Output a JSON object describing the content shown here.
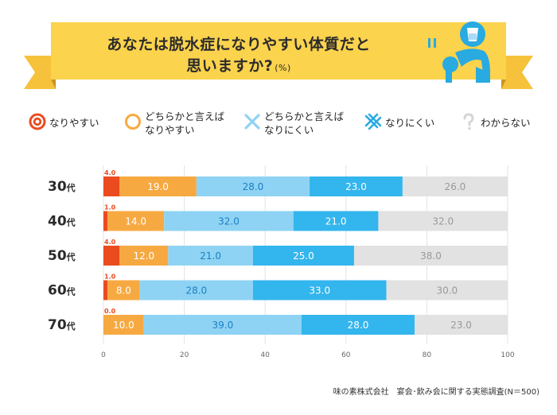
{
  "title_line1": "あなたは脱水症になりやすい体質だと",
  "title_line2": "思いますか?",
  "title_unit": "(%)",
  "legend": [
    {
      "label1": "なりやすい",
      "label2": "",
      "color": "#ea4b1f",
      "icon": "double-circle-icon"
    },
    {
      "label1": "どちらかと言えば",
      "label2": "なりやすい",
      "color": "#f7a941",
      "icon": "circle-icon"
    },
    {
      "label1": "どちらかと言えば",
      "label2": "なりにくい",
      "color": "#8fd3f4",
      "icon": "cross-icon"
    },
    {
      "label1": "なりにくい",
      "label2": "",
      "color": "#29aae1",
      "icon": "double-cross-icon"
    },
    {
      "label1": "わからない",
      "label2": "",
      "color": "#d6d6d6",
      "icon": "question-mark-icon"
    }
  ],
  "source": "味の素株式会社　宴会･飲み会に関する実態調査(N＝500)",
  "chart_data": {
    "type": "bar",
    "orientation": "horizontal",
    "stacked": true,
    "categories": [
      "30代",
      "40代",
      "50代",
      "60代",
      "70代"
    ],
    "series": [
      {
        "name": "なりやすい",
        "color": "#ea4b1f",
        "values": [
          4.0,
          1.0,
          4.0,
          1.0,
          0.0
        ]
      },
      {
        "name": "どちらかと言えばなりやすい",
        "color": "#f7a941",
        "values": [
          19.0,
          14.0,
          12.0,
          8.0,
          10.0
        ]
      },
      {
        "name": "どちらかと言えばなりにくい",
        "color": "#8fd3f4",
        "values": [
          28.0,
          32.0,
          21.0,
          28.0,
          39.0
        ]
      },
      {
        "name": "なりにくい",
        "color": "#33b5ed",
        "values": [
          23.0,
          21.0,
          25.0,
          33.0,
          28.0
        ]
      },
      {
        "name": "わからない",
        "color": "#e2e2e2",
        "values": [
          26.0,
          32.0,
          38.0,
          30.0,
          23.0
        ]
      }
    ],
    "label_colors": [
      "#ea4b1f",
      "#ffffff",
      "#1a7fc4",
      "#ffffff",
      "#999999"
    ],
    "xticks": [
      0,
      20,
      40,
      60,
      80,
      100
    ],
    "xlim": [
      0,
      100
    ],
    "grid": true
  }
}
